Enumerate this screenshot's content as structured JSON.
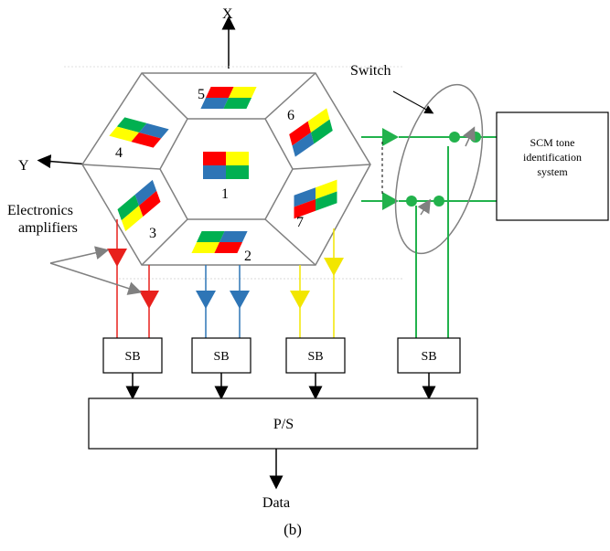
{
  "diagram": {
    "axes": {
      "x": "X",
      "y": "Y"
    },
    "switch_label": "Switch",
    "amplifier_label_line1": "Electronics",
    "amplifier_label_line2": "amplifiers",
    "scm_line1": "SCM tone",
    "scm_line2": "identification",
    "scm_line3": "system",
    "facets": [
      "1",
      "2",
      "3",
      "4",
      "5",
      "6",
      "7"
    ],
    "sb_blocks": [
      "SB",
      "SB",
      "SB",
      "SB"
    ],
    "ps_label": "P/S",
    "output_label": "Data",
    "caption": "(b)"
  },
  "colors": {
    "red": "#ff0000",
    "green": "#00b050",
    "blue": "#2e75b6",
    "yellow": "#ffff00",
    "line_green": "#22b24c",
    "line_red": "#e8201c",
    "line_blue": "#2e75b6",
    "line_yellow": "#f2e600",
    "outline": "#808080"
  }
}
